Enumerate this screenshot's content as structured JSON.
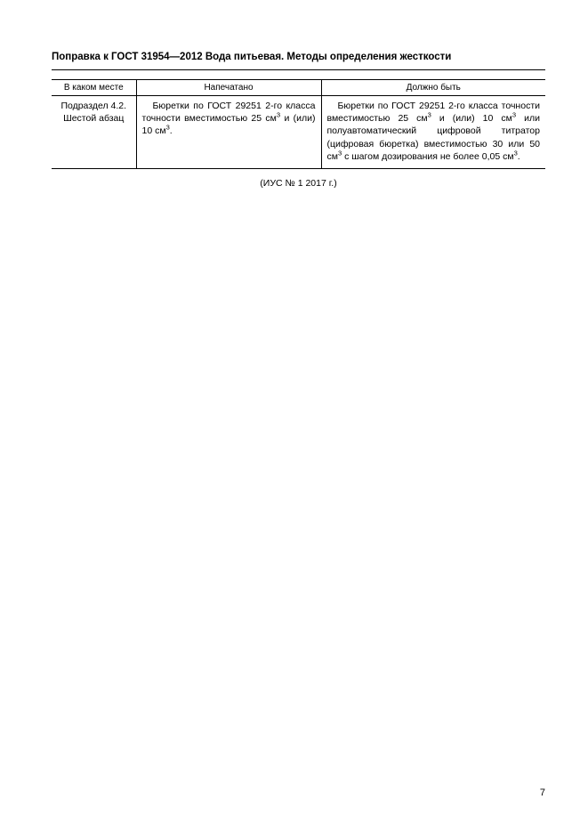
{
  "title": "Поправка к ГОСТ 31954—2012 Вода питьевая. Методы определения жесткости",
  "table": {
    "headers": {
      "where": "В каком месте",
      "printed": "Напечатано",
      "should": "Должно быть"
    },
    "row": {
      "where_line1": "Подраздел 4.2.",
      "where_line2": "Шестой абзац",
      "printed_html": "<span class=\"indent\"></span>Бюретки по ГОСТ 29251 2-го клас­са точности вместимостью 25 см<sup>3</sup> и (или) 10 см<sup>3</sup>.",
      "should_html": "<span class=\"indent\"></span>Бюретки по ГОСТ 29251 2-го класса точ­ности вместимостью 25 см<sup>3</sup> и (или) 10 см<sup>3</sup> или полуавтоматический цифровой титра­тор (цифровая бюретка) вместимостью 30 или 50 см<sup>3</sup> с шагом дозирования не бо­лее 0,05 см<sup>3</sup>."
    }
  },
  "source_note": "(ИУС № 1 2017 г.)",
  "page_number": "7"
}
